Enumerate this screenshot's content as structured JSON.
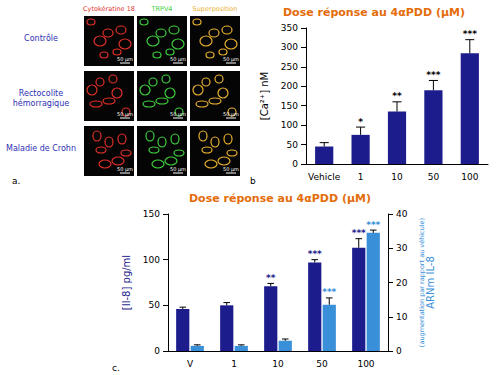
{
  "panel_a": {
    "label": "a.",
    "columns": [
      "Cytokératine 18",
      "TRPV4",
      "Superposition"
    ],
    "rows": [
      "Contrôle",
      "Rectocolite hémorragique",
      "Maladie de Crohn"
    ],
    "scale_bar": "50 µm"
  },
  "chart_data": [
    {
      "type": "bar",
      "annotation": "b",
      "title": "Dose réponse au 4αPDD (µM)",
      "ylabel": "[Ca²⁺] nM",
      "categories": [
        "Vehicle",
        "1",
        "10",
        "50",
        "100"
      ],
      "values": [
        45,
        75,
        135,
        190,
        285
      ],
      "errors": [
        10,
        20,
        25,
        25,
        35
      ],
      "significance": [
        null,
        "*",
        "**",
        "***",
        "***"
      ],
      "color": "#1c1c8c",
      "ylim": [
        0,
        350
      ],
      "yticks": [
        0,
        50,
        100,
        150,
        200,
        250,
        300,
        350
      ]
    },
    {
      "type": "bar",
      "annotation": "c.",
      "title": "Dose réponse au 4αPDD (µM)",
      "ylabel": "[Il-8] pg/ml",
      "y2label": "ARNm IL-8",
      "y2label_note": "(augmentation par rapport au véhicule)",
      "categories": [
        "V",
        "1",
        "10",
        "50",
        "100"
      ],
      "series": [
        {
          "color": "#1c1c8c",
          "values": [
            46,
            50,
            71,
            97,
            113
          ],
          "errors": [
            2,
            3,
            3,
            3,
            10
          ],
          "significance": [
            null,
            null,
            "**",
            "***",
            "***"
          ]
        },
        {
          "color": "#3a8fd9",
          "axis": "y2",
          "values": [
            1.5,
            1.5,
            3,
            13.5,
            34.5
          ],
          "errors": [
            0.3,
            0.3,
            0.5,
            2,
            0.8
          ],
          "significance": [
            null,
            null,
            null,
            "***",
            "***"
          ]
        }
      ],
      "ylim": [
        0,
        150
      ],
      "yticks": [
        0,
        50,
        100,
        150
      ],
      "y2lim": [
        0,
        40
      ],
      "y2ticks": [
        0,
        10,
        20,
        30,
        40
      ]
    }
  ]
}
